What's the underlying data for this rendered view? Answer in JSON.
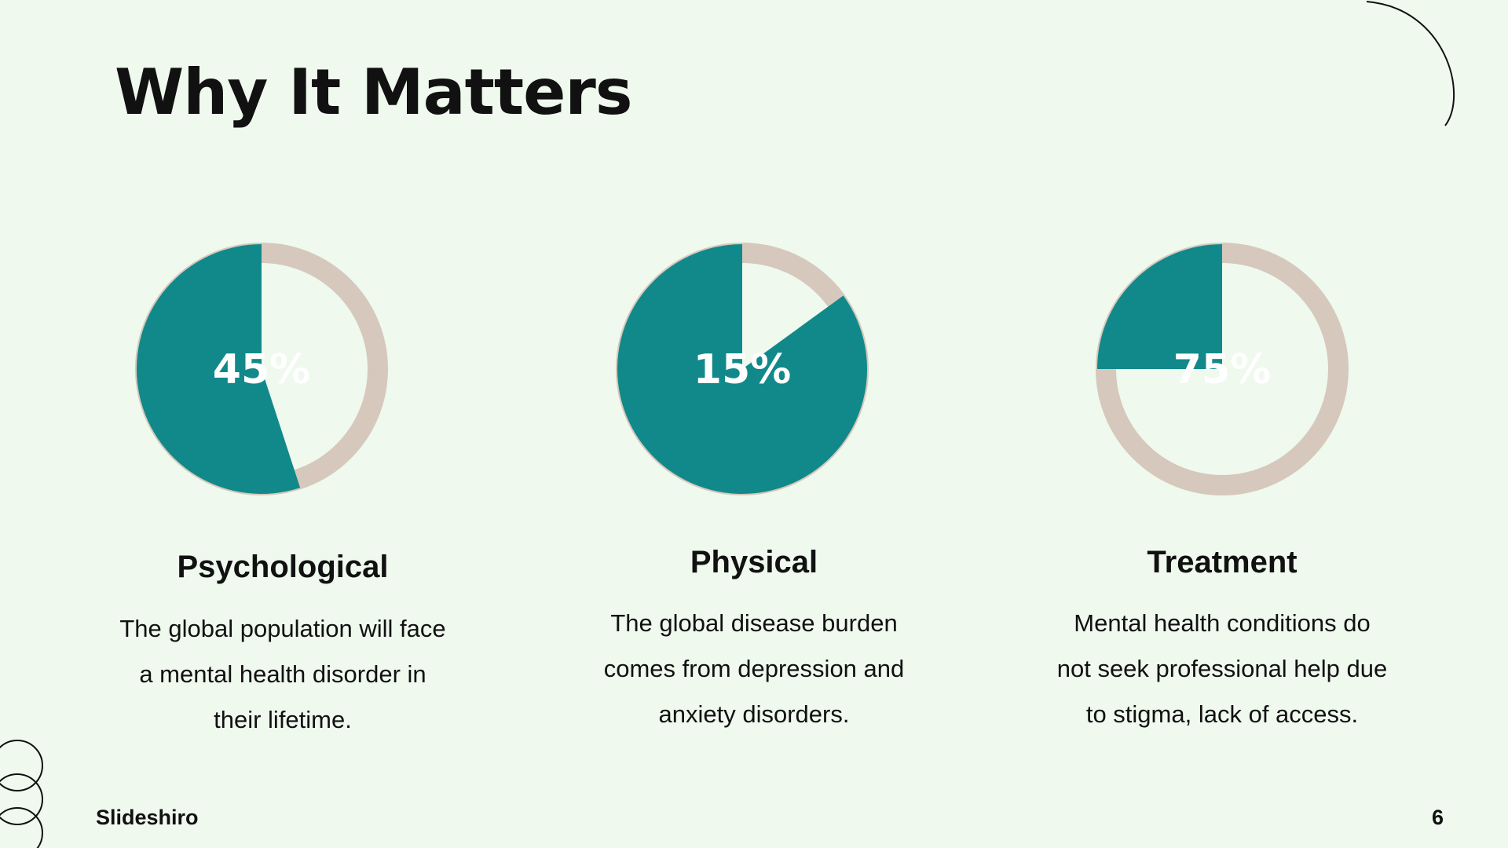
{
  "title": "Why It Matters",
  "colors": {
    "background": "#EFF9EE",
    "fill": "#11898A",
    "ring": "#D6C8BC",
    "text": "#111111"
  },
  "chart_data": [
    {
      "type": "pie",
      "value": 45,
      "label": "45%",
      "heading": "Psychological",
      "lines": [
        "The global population will face",
        "a mental health disorder in",
        "their lifetime."
      ]
    },
    {
      "type": "pie",
      "value": 15,
      "label": "15%",
      "heading": "Physical",
      "lines": [
        "The global disease burden",
        "comes from depression and",
        "anxiety disorders."
      ]
    },
    {
      "type": "pie",
      "value": 75,
      "label": "75%",
      "heading": "Treatment",
      "lines": [
        "Mental health conditions do",
        "not seek professional help due",
        "to stigma, lack of access."
      ]
    }
  ],
  "footer": {
    "brand": "Slideshiro",
    "page": "6"
  }
}
